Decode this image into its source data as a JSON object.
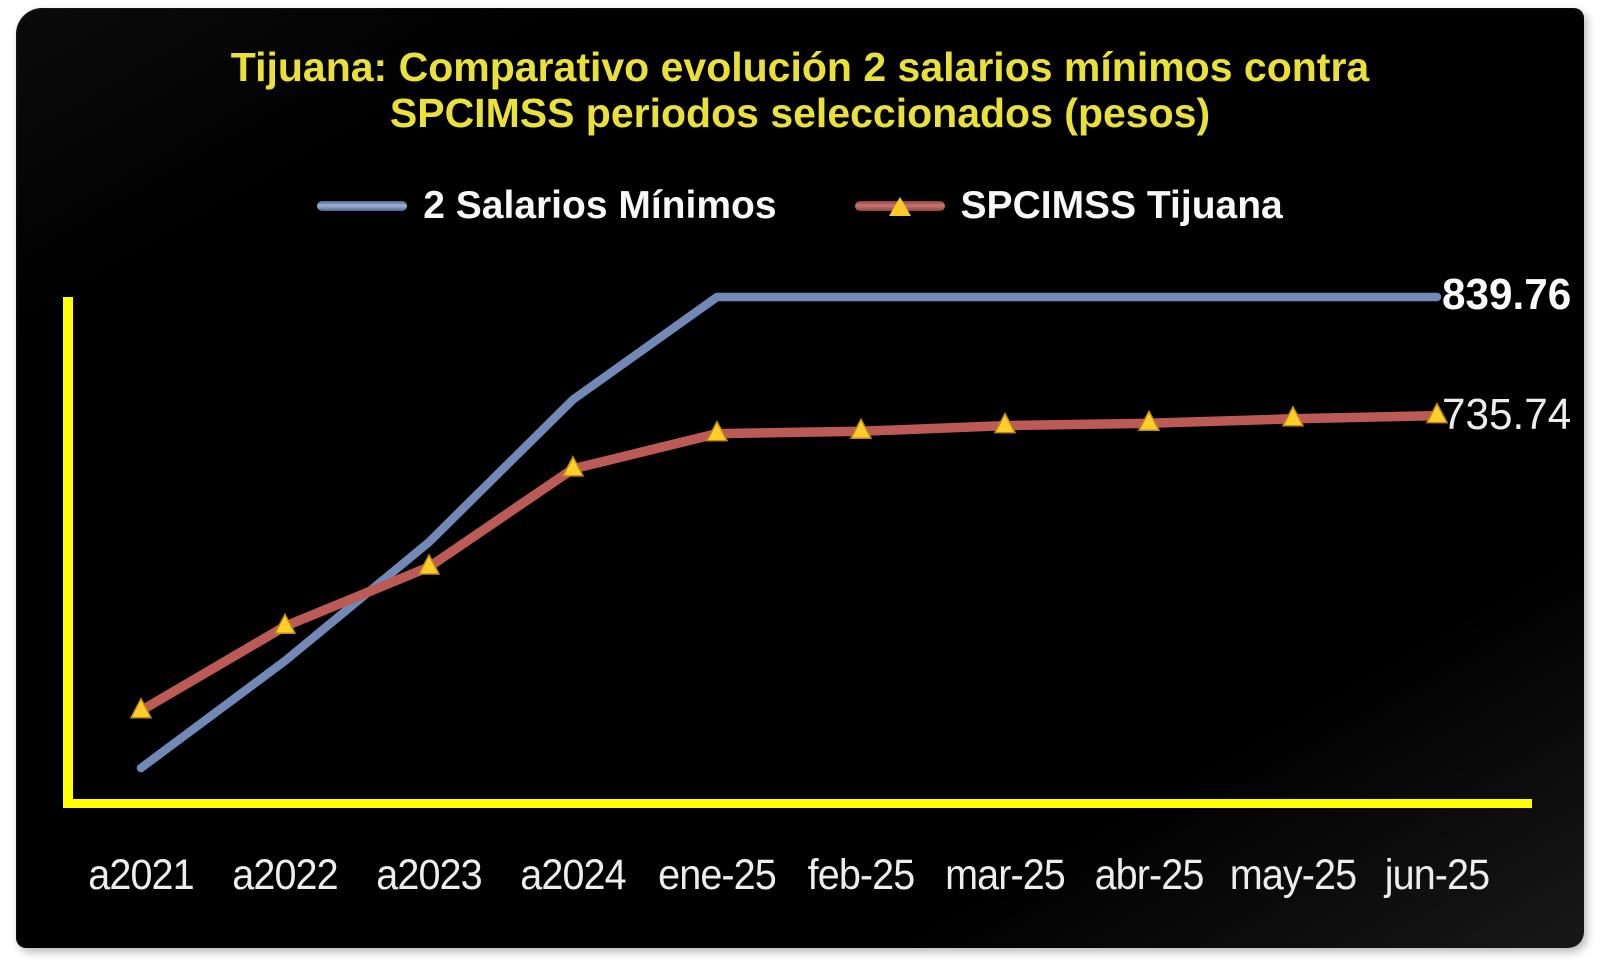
{
  "chart": {
    "title_line1": "Tijuana: Comparativo evolución 2 salarios mínimos contra",
    "title_line2": "SPCIMSS periodos seleccionados (pesos)",
    "title_color": "#e9e138",
    "panel_bg": "#000000",
    "axis_color": "#ffff00",
    "x_label_color": "#ededed",
    "page_bg": "#ffffff"
  },
  "chart_data": {
    "type": "line",
    "title": "Tijuana: Comparativo evolución 2 salarios mínimos contra SPCIMSS periodos seleccionados (pesos)",
    "categories": [
      "a2021",
      "a2022",
      "a2023",
      "a2024",
      "ene-25",
      "feb-25",
      "mar-25",
      "abr-25",
      "may-25",
      "jun-25"
    ],
    "series": [
      {
        "name": "2 Salarios Mínimos",
        "color": "#7289b8",
        "marker": "none",
        "values": [
          426.78,
          520.68,
          624.82,
          749.78,
          839.76,
          839.76,
          839.76,
          839.76,
          839.76,
          839.76
        ],
        "end_label": "839.76"
      },
      {
        "name": "SPCIMSS Tijuana",
        "color": "#bc5a55",
        "marker": "triangle-up",
        "marker_color": "#ffce2b",
        "marker_edge_color": "#c08a10",
        "values": [
          477,
          551,
          603,
          689,
          720,
          722,
          727,
          729,
          733,
          735.74
        ],
        "end_label": "735.74"
      }
    ],
    "xlabel": "",
    "ylabel": "",
    "y_axis_labels_visible": false,
    "ylim": [
      395,
      840
    ],
    "grid": false,
    "legend_position": "top",
    "background": "black"
  }
}
